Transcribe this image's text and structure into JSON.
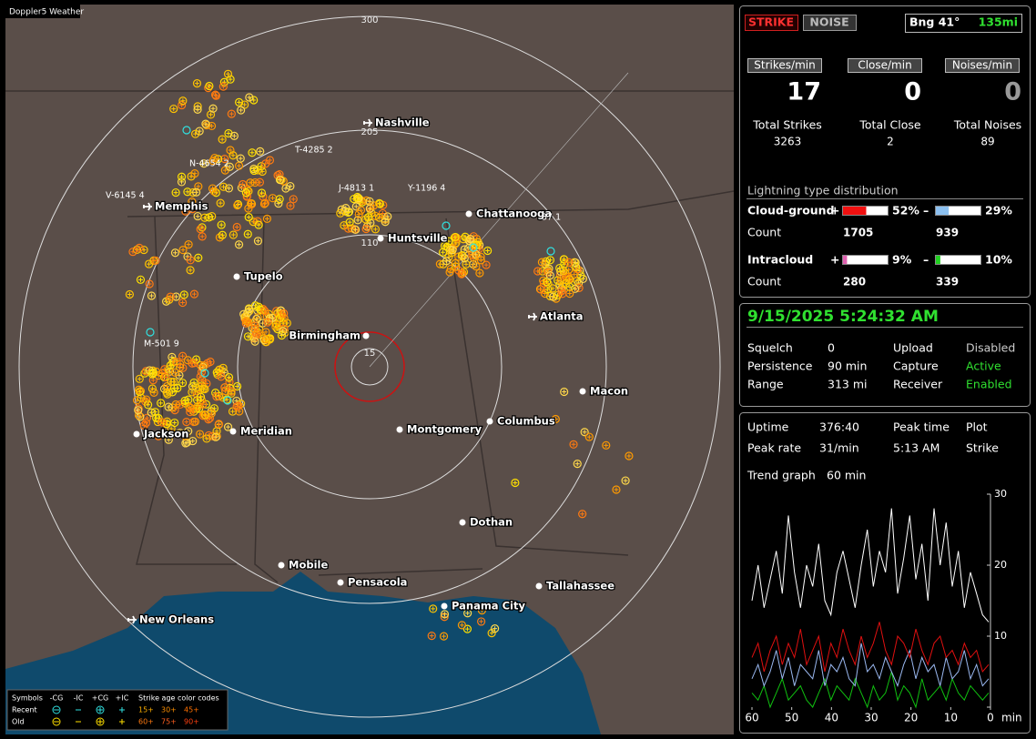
{
  "map": {
    "title": "Doppler5 Weather",
    "range_labels": [
      "300",
      "205",
      "110",
      "15"
    ],
    "cities": [
      {
        "name": "Nashville",
        "airport": true
      },
      {
        "name": "Memphis",
        "airport": true
      },
      {
        "name": "Chattanooga",
        "airport": false
      },
      {
        "name": "Huntsville",
        "airport": false
      },
      {
        "name": "Tupelo",
        "airport": false
      },
      {
        "name": "Birmingham",
        "airport": false
      },
      {
        "name": "Atlanta",
        "airport": true
      },
      {
        "name": "Macon",
        "airport": false
      },
      {
        "name": "Jackson",
        "airport": false
      },
      {
        "name": "Meridian",
        "airport": false
      },
      {
        "name": "Montgomery",
        "airport": false
      },
      {
        "name": "Columbus",
        "airport": false
      },
      {
        "name": "Dothan",
        "airport": false
      },
      {
        "name": "Mobile",
        "airport": false
      },
      {
        "name": "Pensacola",
        "airport": false
      },
      {
        "name": "Tallahassee",
        "airport": false
      },
      {
        "name": "Panama City",
        "airport": false
      },
      {
        "name": "New Orleans",
        "airport": true
      }
    ],
    "aircraft": [
      "N-4654 2",
      "T-4285 2",
      "V-6145 4",
      "J-4813 1",
      "Y-1196 4",
      "M-501 9",
      "37 1"
    ],
    "legend": {
      "symbols": "Symbols",
      "headers": [
        "-CG",
        "-IC",
        "+CG",
        "+IC"
      ],
      "age_title": "Strike age color codes",
      "rows": [
        {
          "label": "Recent",
          "ages": [
            "15+",
            "30+",
            "45+"
          ]
        },
        {
          "label": "Old",
          "ages": [
            "60+",
            "75+",
            "90+"
          ]
        }
      ]
    }
  },
  "panel": {
    "mode_buttons": [
      "STRIKE",
      "NOISE"
    ],
    "bearing": "Bng 41°",
    "distance": "135mi",
    "rates": [
      {
        "label": "Strikes/min",
        "value": 17
      },
      {
        "label": "Close/min",
        "value": 0
      },
      {
        "label": "Noises/min",
        "value": 0
      }
    ],
    "totals": [
      {
        "label": "Total Strikes",
        "value": 3263
      },
      {
        "label": "Total Close",
        "value": 2
      },
      {
        "label": "Total Noises",
        "value": 89
      }
    ],
    "distribution": {
      "title": "Lightning type distribution",
      "count_label": "Count",
      "plus_sign": "+",
      "minus_sign": "–",
      "types": [
        {
          "name": "Cloud-ground",
          "plus": {
            "value": 52,
            "label": "52%",
            "count": 1705
          },
          "minus": {
            "value": 29,
            "label": "29%",
            "count": 939
          }
        },
        {
          "name": "Intracloud",
          "plus": {
            "value": 9,
            "label": "9%",
            "count": 280
          },
          "minus": {
            "value": 10,
            "label": "10%",
            "count": 339
          }
        }
      ]
    },
    "datetime": "9/15/2025 5:24:32 AM",
    "settings": [
      [
        "Squelch",
        "0",
        "Upload",
        "Disabled"
      ],
      [
        "Persistence",
        "90 min",
        "Capture",
        "Active"
      ],
      [
        "Range",
        "313 mi",
        "Receiver",
        "Enabled"
      ]
    ],
    "stats": [
      [
        "Uptime",
        "376:40",
        "Peak time",
        "Plot"
      ],
      [
        "Peak rate",
        "31/min",
        "5:13 AM",
        "Strike"
      ]
    ],
    "trend_label": "Trend graph",
    "trend_span": "60 min"
  },
  "chart_data": {
    "type": "line",
    "xlabel": "min",
    "xlim": [
      60,
      0
    ],
    "xticks": [
      60,
      50,
      40,
      30,
      20,
      10,
      0
    ],
    "ylim": [
      0,
      30
    ],
    "yticks": [
      0,
      10,
      20,
      30
    ],
    "series": [
      {
        "color": "#ffffff",
        "values": [
          15,
          20,
          14,
          18,
          22,
          16,
          27,
          19,
          14,
          20,
          17,
          23,
          15,
          13,
          19,
          22,
          18,
          14,
          20,
          25,
          17,
          22,
          19,
          28,
          16,
          21,
          27,
          18,
          23,
          15,
          28,
          20,
          26,
          17,
          22,
          14,
          19,
          16,
          13,
          12
        ]
      },
      {
        "color": "#e01010",
        "values": [
          7,
          9,
          5,
          8,
          10,
          6,
          9,
          7,
          11,
          6,
          8,
          10,
          5,
          9,
          7,
          11,
          8,
          6,
          10,
          7,
          9,
          12,
          8,
          6,
          10,
          9,
          7,
          11,
          8,
          6,
          9,
          10,
          7,
          8,
          6,
          9,
          7,
          8,
          5,
          6
        ]
      },
      {
        "color": "#9ab8f0",
        "values": [
          4,
          6,
          3,
          5,
          8,
          4,
          7,
          3,
          6,
          5,
          4,
          8,
          3,
          6,
          5,
          7,
          4,
          3,
          9,
          5,
          6,
          4,
          7,
          5,
          3,
          6,
          8,
          4,
          7,
          5,
          6,
          3,
          7,
          4,
          5,
          8,
          4,
          6,
          3,
          4
        ]
      },
      {
        "color": "#10c010",
        "values": [
          2,
          1,
          3,
          0,
          2,
          4,
          1,
          2,
          3,
          1,
          0,
          2,
          4,
          1,
          3,
          2,
          1,
          4,
          2,
          0,
          3,
          1,
          2,
          5,
          1,
          3,
          2,
          0,
          4,
          1,
          2,
          3,
          1,
          4,
          2,
          1,
          3,
          2,
          1,
          2
        ]
      }
    ]
  }
}
